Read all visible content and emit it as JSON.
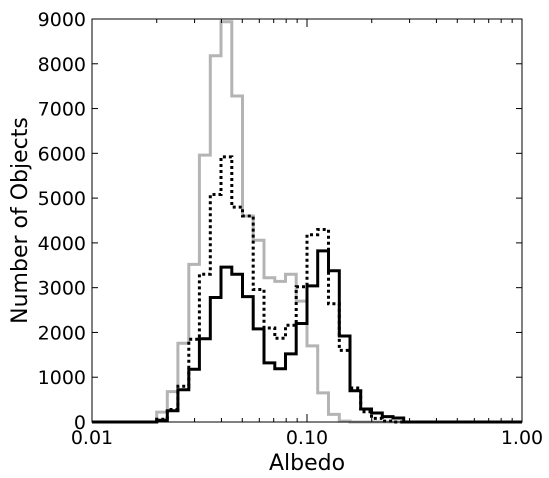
{
  "chart_data": {
    "type": "histogram-step",
    "xlabel": "Albedo",
    "ylabel": "Number of Objects",
    "x_scale": "log",
    "xlim": [
      0.01,
      1.0
    ],
    "ylim": [
      0,
      9000
    ],
    "x_ticks": [
      0.01,
      0.1,
      1.0
    ],
    "x_tick_labels": [
      "0.01",
      "0.10",
      "1.00"
    ],
    "y_ticks": [
      0,
      1000,
      2000,
      3000,
      4000,
      5000,
      6000,
      7000,
      8000,
      9000
    ],
    "y_tick_labels": [
      "0",
      "1000",
      "2000",
      "3000",
      "4000",
      "5000",
      "6000",
      "7000",
      "8000",
      "9000"
    ],
    "bin_edges": [
      0.01,
      0.0112,
      0.0126,
      0.0141,
      0.0158,
      0.0178,
      0.02,
      0.0224,
      0.0251,
      0.0282,
      0.0316,
      0.0355,
      0.0398,
      0.0447,
      0.0501,
      0.0562,
      0.0631,
      0.0708,
      0.0794,
      0.0891,
      0.1,
      0.1122,
      0.1259,
      0.1413,
      0.1585,
      0.1778,
      0.1995,
      0.2239,
      0.2512,
      0.2818,
      0.3162,
      0.3548,
      0.3981,
      0.4467,
      0.5012,
      0.5623,
      0.631,
      0.7079,
      0.7943,
      0.8913,
      1.0
    ],
    "series": [
      {
        "style": "gray-solid",
        "color": "#b4b4b4",
        "values": [
          0,
          0,
          0,
          0,
          0,
          0,
          220,
          680,
          1760,
          3520,
          5960,
          8180,
          8940,
          7280,
          4600,
          4060,
          3220,
          3140,
          3300,
          2700,
          1700,
          650,
          170,
          20,
          0,
          0,
          0,
          0,
          0,
          0,
          0,
          0,
          0,
          0,
          0,
          0,
          0,
          0,
          0,
          0
        ]
      },
      {
        "style": "black-dotted",
        "color": "#000000",
        "values": [
          0,
          0,
          0,
          0,
          0,
          0,
          60,
          280,
          800,
          1850,
          3300,
          5080,
          5920,
          4800,
          4600,
          2960,
          2100,
          1870,
          2160,
          3020,
          4180,
          4300,
          2640,
          1600,
          760,
          230,
          80,
          20,
          0,
          0,
          0,
          0,
          0,
          0,
          0,
          0,
          0,
          0,
          0,
          0
        ]
      },
      {
        "style": "black-solid",
        "color": "#000000",
        "values": [
          0,
          0,
          0,
          0,
          0,
          0,
          40,
          250,
          720,
          1180,
          1860,
          2780,
          3460,
          3300,
          2800,
          2080,
          1320,
          1190,
          1520,
          2200,
          3040,
          3820,
          3380,
          1920,
          700,
          290,
          200,
          120,
          90,
          0,
          0,
          0,
          0,
          0,
          0,
          0,
          0,
          0,
          0,
          0
        ]
      }
    ]
  }
}
